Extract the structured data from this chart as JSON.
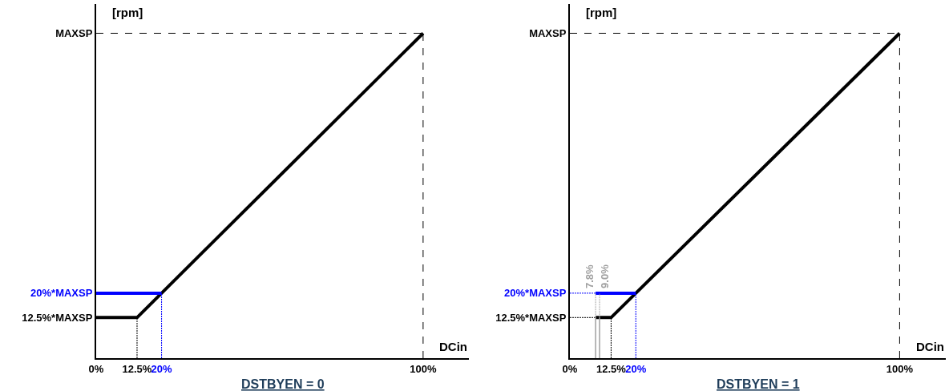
{
  "chart_data": [
    {
      "type": "line",
      "title": "DSTBYEN = 0",
      "xlabel": "DCin",
      "ylabel": "[rpm]",
      "xlim": [
        0,
        114
      ],
      "ylim": [
        0,
        109
      ],
      "xticks": [
        {
          "value": 0,
          "label": "0%"
        },
        {
          "value": 12.5,
          "label": "12.5%"
        },
        {
          "value": 20,
          "label": "20%"
        },
        {
          "value": 100,
          "label": "100%"
        }
      ],
      "yticks": [
        {
          "value": 12.5,
          "label": "12.5%*MAXSP"
        },
        {
          "value": 20,
          "label": "20%*MAXSP"
        },
        {
          "value": 100,
          "label": "MAXSP"
        }
      ],
      "series": [
        {
          "color": "#000000",
          "x": [
            0,
            12.5,
            100
          ],
          "values": [
            12.5,
            12.5,
            100
          ],
          "line_style": "solid"
        },
        {
          "color": "#0000ff",
          "x": [
            0,
            20
          ],
          "values": [
            20,
            20
          ],
          "line_style": "solid"
        },
        {
          "color": "#000000",
          "x": [
            0,
            100
          ],
          "values": [
            100,
            100
          ],
          "line_style": "dashed"
        },
        {
          "color": "#000000",
          "x": [
            100,
            100
          ],
          "values": [
            0,
            100
          ],
          "line_style": "dashed"
        },
        {
          "color": "#000000",
          "x": [
            12.5,
            12.5
          ],
          "values": [
            0,
            12.5
          ],
          "line_style": "dotted"
        },
        {
          "color": "#0000ff",
          "x": [
            20,
            20
          ],
          "values": [
            0,
            20
          ],
          "line_style": "dotted"
        }
      ]
    },
    {
      "type": "line",
      "title": "DSTBYEN = 1",
      "xlabel": "DCin",
      "ylabel": "[rpm]",
      "xlim": [
        0,
        114
      ],
      "ylim": [
        0,
        109
      ],
      "xticks": [
        {
          "value": 0,
          "label": "0%"
        },
        {
          "value": 12.5,
          "label": "12.5%"
        },
        {
          "value": 20,
          "label": "20%"
        },
        {
          "value": 100,
          "label": "100%"
        }
      ],
      "yticks": [
        {
          "value": 12.5,
          "label": "12.5%*MAXSP"
        },
        {
          "value": 20,
          "label": "20%*MAXSP"
        },
        {
          "value": 100,
          "label": "MAXSP"
        }
      ],
      "annotations": [
        {
          "text": "7.8%",
          "x": 7.8,
          "y": 20
        },
        {
          "text": "9.0%",
          "x": 9.0,
          "y": 20
        }
      ],
      "series": [
        {
          "color": "#000000",
          "x": [
            7.8,
            12.5,
            100
          ],
          "values": [
            12.5,
            12.5,
            100
          ],
          "line_style": "solid"
        },
        {
          "color": "#0000ff",
          "x": [
            7.8,
            20
          ],
          "values": [
            20,
            20
          ],
          "line_style": "solid"
        },
        {
          "color": "#000000",
          "x": [
            0,
            100
          ],
          "values": [
            100,
            100
          ],
          "line_style": "dashed"
        },
        {
          "color": "#000000",
          "x": [
            100,
            100
          ],
          "values": [
            0,
            100
          ],
          "line_style": "dashed"
        },
        {
          "color": "#000000",
          "x": [
            12.5,
            12.5
          ],
          "values": [
            0,
            12.5
          ],
          "line_style": "dotted"
        },
        {
          "color": "#0000ff",
          "x": [
            20,
            20
          ],
          "values": [
            0,
            20
          ],
          "line_style": "dotted"
        },
        {
          "color": "#000000",
          "x": [
            0,
            7.8
          ],
          "values": [
            12.5,
            12.5
          ],
          "line_style": "dotted"
        },
        {
          "color": "#0000ff",
          "x": [
            0,
            7.8
          ],
          "values": [
            20,
            20
          ],
          "line_style": "dotted"
        },
        {
          "color": "#a0a0a0",
          "x": [
            7.8,
            7.8
          ],
          "values": [
            12.5,
            20
          ],
          "line_style": "dotted"
        },
        {
          "color": "#a0a0a0",
          "x": [
            9.0,
            9.0
          ],
          "values": [
            12.5,
            20
          ],
          "line_style": "dotted"
        },
        {
          "color": "#a0a0a0",
          "x": [
            7.8,
            7.8
          ],
          "values": [
            12.5,
            0
          ],
          "line_style": "solid"
        },
        {
          "color": "#a0a0a0",
          "x": [
            9.0,
            9.0
          ],
          "values": [
            0,
            12.5
          ],
          "line_style": "solid"
        }
      ]
    }
  ]
}
